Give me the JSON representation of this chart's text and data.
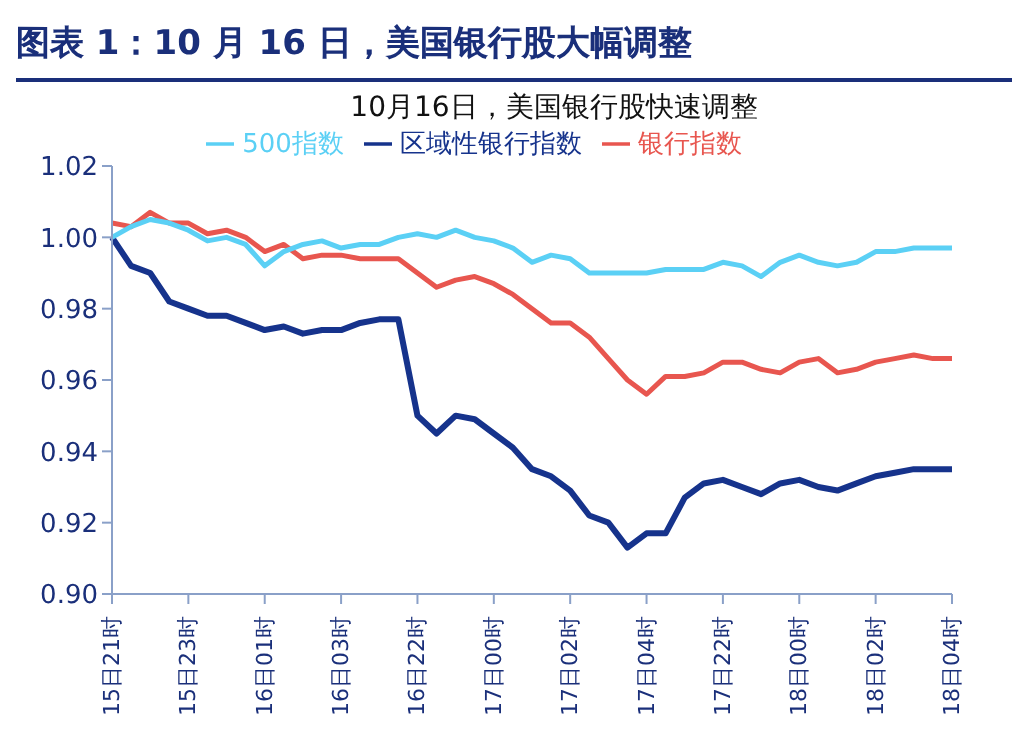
{
  "chart_data": {
    "type": "line",
    "title": "图表 1：10 月 16 日，美国银行股大幅调整",
    "subtitle": "10月16日，美国银行股快速调整",
    "categories": [
      "15日21时",
      null,
      null,
      null,
      "15日23时",
      null,
      null,
      null,
      "16日01时",
      null,
      null,
      null,
      "16日03时",
      null,
      null,
      null,
      "16日22时",
      null,
      null,
      null,
      "17日00时",
      null,
      null,
      null,
      "17日02时",
      null,
      null,
      null,
      "17日04时",
      null,
      null,
      null,
      "17日22时",
      null,
      null,
      null,
      "18日00时",
      null,
      null,
      null,
      "18日02时",
      null,
      null,
      null,
      "18日04时"
    ],
    "series": [
      {
        "name": "区域性银行指数",
        "color": "#16338c",
        "values": [
          1.0,
          0.992,
          0.99,
          0.982,
          0.98,
          0.978,
          0.978,
          0.976,
          0.974,
          0.975,
          0.973,
          0.974,
          0.974,
          0.976,
          0.977,
          0.977,
          0.95,
          0.945,
          0.95,
          0.949,
          0.945,
          0.941,
          0.935,
          0.933,
          0.929,
          0.922,
          0.92,
          0.913,
          0.917,
          0.917,
          0.927,
          0.931,
          0.932,
          0.93,
          0.928,
          0.931,
          0.932,
          0.93,
          0.929,
          0.931,
          0.933,
          0.934,
          0.935,
          0.935,
          0.935
        ]
      },
      {
        "name": "银行指数",
        "color": "#e8564f",
        "values": [
          1.004,
          1.003,
          1.007,
          1.004,
          1.004,
          1.001,
          1.002,
          1.0,
          0.996,
          0.998,
          0.994,
          0.995,
          0.995,
          0.994,
          0.994,
          0.994,
          0.99,
          0.986,
          0.988,
          0.989,
          0.987,
          0.984,
          0.98,
          0.976,
          0.976,
          0.972,
          0.966,
          0.96,
          0.956,
          0.961,
          0.961,
          0.962,
          0.965,
          0.965,
          0.963,
          0.962,
          0.965,
          0.966,
          0.962,
          0.963,
          0.965,
          0.966,
          0.967,
          0.966,
          0.966
        ]
      },
      {
        "name": "500指数",
        "color": "#5bd0f5",
        "values": [
          1.0,
          1.003,
          1.005,
          1.004,
          1.002,
          0.999,
          1.0,
          0.998,
          0.992,
          0.996,
          0.998,
          0.999,
          0.997,
          0.998,
          0.998,
          1.0,
          1.001,
          1.0,
          1.002,
          1.0,
          0.999,
          0.997,
          0.993,
          0.995,
          0.994,
          0.99,
          0.99,
          0.99,
          0.99,
          0.991,
          0.991,
          0.991,
          0.993,
          0.992,
          0.989,
          0.993,
          0.995,
          0.993,
          0.992,
          0.993,
          0.996,
          0.996,
          0.997,
          0.997,
          0.997
        ]
      }
    ],
    "ylim": [
      0.9,
      1.02
    ],
    "yticks": [
      {
        "value": 0.9,
        "label": "0.90"
      },
      {
        "value": 0.92,
        "label": "0.92"
      },
      {
        "value": 0.94,
        "label": "0.94"
      },
      {
        "value": 0.96,
        "label": "0.96"
      },
      {
        "value": 0.98,
        "label": "0.98"
      },
      {
        "value": 1,
        "label": "1.00"
      },
      {
        "value": 1.02,
        "label": "1.02"
      }
    ],
    "legend": "top",
    "marker": "none",
    "line_style": "solid"
  }
}
